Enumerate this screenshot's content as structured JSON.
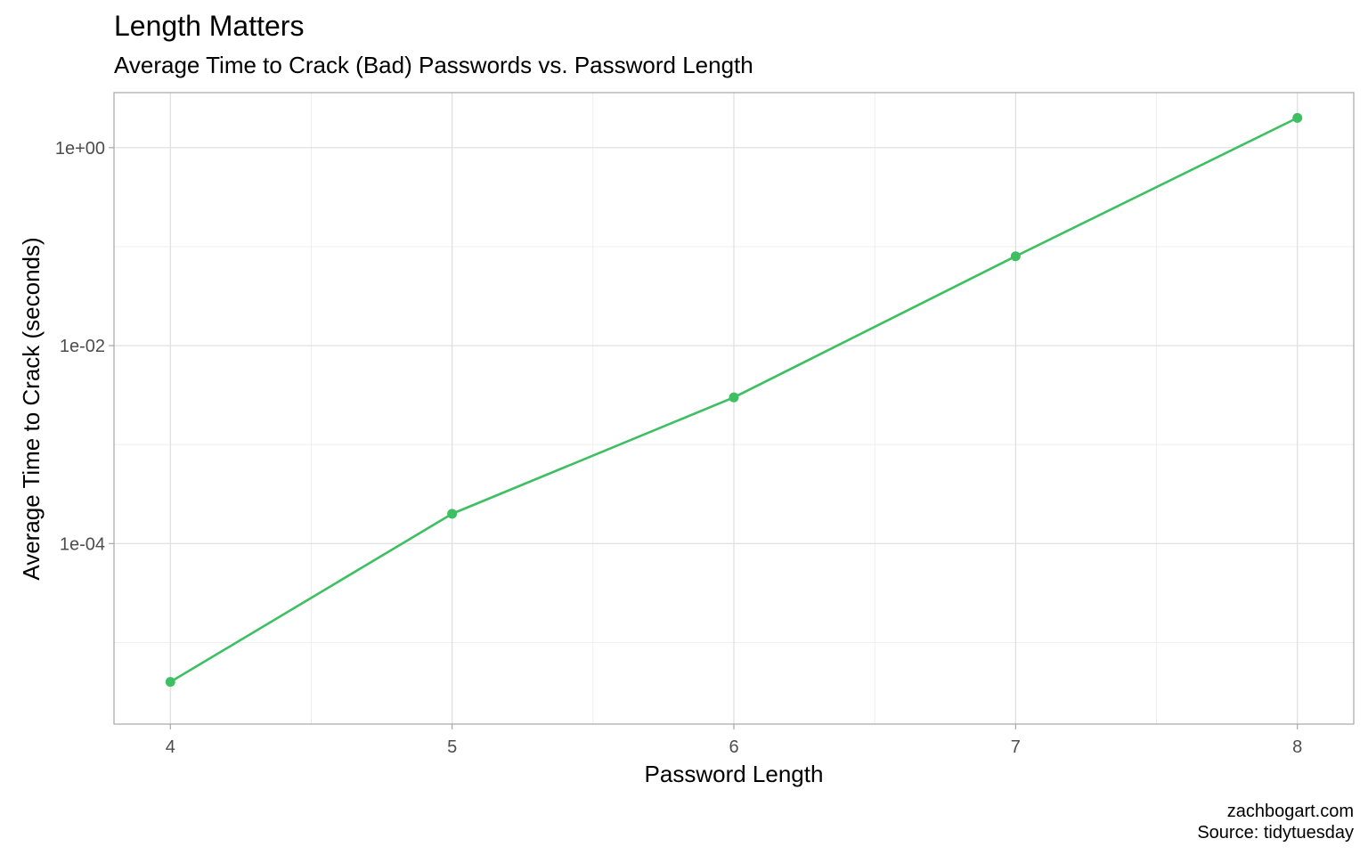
{
  "chart_data": {
    "type": "line",
    "title": "Length Matters",
    "subtitle": "Average Time to Crack (Bad) Passwords vs. Password Length",
    "xlabel": "Password Length",
    "ylabel": "Average Time to Crack (seconds)",
    "x_scale": "linear",
    "y_scale": "log10",
    "xlim": [
      3.8,
      8.2
    ],
    "ylim": [
      1.5e-06,
      3.6
    ],
    "x_ticks": [
      4,
      5,
      6,
      7,
      8
    ],
    "x_tick_labels": [
      "4",
      "5",
      "6",
      "7",
      "8"
    ],
    "y_ticks": [
      0.0001,
      0.01,
      1
    ],
    "y_tick_labels": [
      "1e-04",
      "1e-02",
      "1e+00"
    ],
    "grid": true,
    "series": [
      {
        "color": "#3dbf62",
        "x": [
          4,
          5,
          6,
          7,
          8
        ],
        "y": [
          4e-06,
          0.0002,
          0.003,
          0.08,
          2.0
        ]
      }
    ],
    "caption": [
      "zachbogart.com",
      "Source: tidytuesday"
    ]
  }
}
